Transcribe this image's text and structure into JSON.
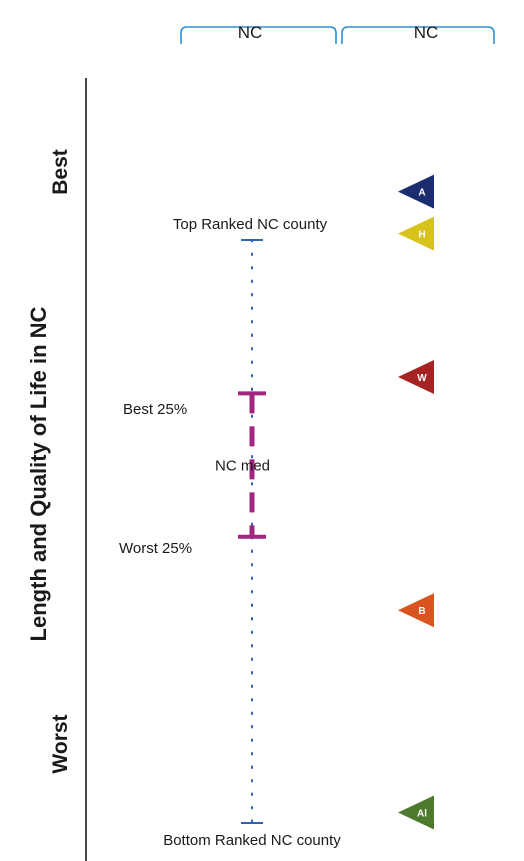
{
  "header": {
    "col1_label": "NC",
    "col2_label": "NC"
  },
  "colors": {
    "axis_line": "#1a1a1a",
    "bracket": "#2f8fd0",
    "dotted_range": "#2f63b8",
    "quartile_bar": "#a0267f",
    "marker_A": "#1b2d6e",
    "marker_H": "#d8c21c",
    "marker_W": "#a52323",
    "marker_B": "#d9541e",
    "marker_Al": "#4f7a2e"
  },
  "chart_data": {
    "type": "scatter",
    "ylabel": "Length and Quality of Life in NC",
    "y_direction": "top = Best, bottom = Worst",
    "y_end_labels": {
      "top": "Best",
      "bottom": "Worst"
    },
    "range_labels": {
      "top": "Top Ranked NC county",
      "bottom": "Bottom Ranked NC county",
      "upper_quartile": "Best 25%",
      "lower_quartile": "Worst 25%",
      "median": "NC med"
    },
    "scale": "relative position, 0 = Bottom Ranked NC county, 100 = Top Ranked NC county",
    "range": {
      "top": 100,
      "best_25": 73.7,
      "median": 61.3,
      "worst_25": 49.1,
      "bottom": 0
    },
    "markers": [
      {
        "label": "A",
        "value": 108.3,
        "color_key": "marker_A"
      },
      {
        "label": "H",
        "value": 101.1,
        "color_key": "marker_H"
      },
      {
        "label": "W",
        "value": 76.5,
        "color_key": "marker_W"
      },
      {
        "label": "B",
        "value": 36.5,
        "color_key": "marker_B"
      },
      {
        "label": "Al",
        "value": 1.8,
        "color_key": "marker_Al"
      }
    ]
  }
}
